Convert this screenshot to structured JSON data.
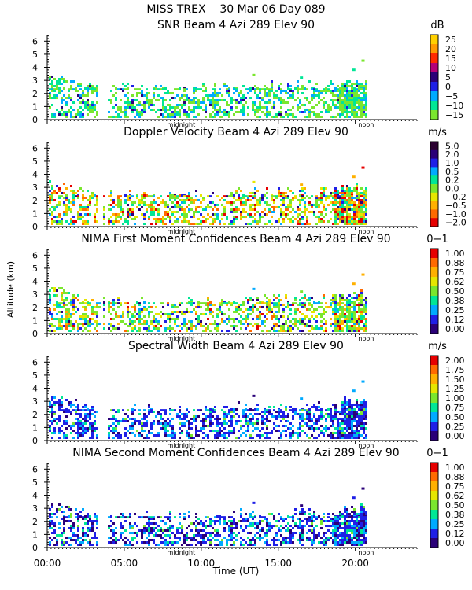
{
  "header": {
    "title": "MISS TREX    30 Mar 06 Day 089"
  },
  "y_axis_label": "Altitude (km)",
  "x_axis": {
    "label": "Time (UT)",
    "ticks": [
      "00:00",
      "05:00",
      "10:00",
      "15:00",
      "20:00"
    ],
    "tick_hours": [
      0,
      5,
      10,
      15,
      20
    ],
    "range_hours": [
      0,
      24
    ],
    "markers": [
      {
        "label": "midnight",
        "hour": 8.7
      },
      {
        "label": "noon",
        "hour": 20.7
      }
    ]
  },
  "chart_data": [
    {
      "type": "heatmap",
      "title": "SNR Beam 4 Azi 289 Elev 90",
      "unit": "dB",
      "yticks": [
        "0",
        "1",
        "2",
        "3",
        "4",
        "5",
        "6"
      ],
      "ylim": [
        0,
        6.5
      ],
      "xlim_hours": [
        0,
        24
      ],
      "colorbar": {
        "labels": [
          "25",
          "20",
          "15",
          "10",
          "5",
          "0",
          "−5",
          "−10",
          "−15"
        ],
        "colors": [
          "#ffd000",
          "#ff9a00",
          "#ff2a00",
          "#b40078",
          "#2a0078",
          "#1f1fe6",
          "#00aaff",
          "#00e696",
          "#7ae62e"
        ]
      },
      "palette_weights": [
        0,
        0,
        0,
        0,
        1,
        2,
        6,
        10,
        14
      ],
      "top_km": 3.4,
      "gap_hours": [
        [
          3.2,
          3.9
        ]
      ]
    },
    {
      "type": "heatmap",
      "title": "Doppler Velocity Beam 4 Azi 289 Elev 90",
      "unit": "m/s",
      "yticks": [
        "0",
        "1",
        "2",
        "3",
        "4",
        "5",
        "6"
      ],
      "ylim": [
        0,
        6.5
      ],
      "xlim_hours": [
        0,
        24
      ],
      "colorbar": {
        "labels": [
          "5.0",
          "2.0",
          "1.0",
          "0.5",
          "0.2",
          "0.0",
          "−0.2",
          "−0.5",
          "−1.0",
          "−2.0"
        ],
        "colors": [
          "#2a0030",
          "#2a0078",
          "#1f1fe6",
          "#00aaff",
          "#00e696",
          "#7ae62e",
          "#e6e600",
          "#ffb000",
          "#ff6a00",
          "#e60000"
        ]
      },
      "palette_weights": [
        0,
        1,
        2,
        2,
        4,
        8,
        6,
        4,
        3,
        2
      ],
      "top_km": 3.4,
      "gap_hours": [
        [
          3.2,
          3.9
        ]
      ]
    },
    {
      "type": "heatmap",
      "title": "NIMA First Moment Confidences Beam 4 Azi 289 Elev 90",
      "unit": "0−1",
      "yticks": [
        "0",
        "1",
        "2",
        "3",
        "4",
        "5",
        "6"
      ],
      "ylim": [
        0,
        6.5
      ],
      "xlim_hours": [
        0,
        24
      ],
      "colorbar": {
        "labels": [
          "1.00",
          "0.88",
          "0.75",
          "0.62",
          "0.50",
          "0.38",
          "0.25",
          "0.12",
          "0.00"
        ],
        "colors": [
          "#e60000",
          "#ff6a00",
          "#ffb000",
          "#e6e600",
          "#7ae62e",
          "#00e696",
          "#00aaff",
          "#1f1fe6",
          "#2a0078"
        ]
      },
      "palette_weights": [
        1,
        2,
        3,
        4,
        12,
        6,
        3,
        3,
        2
      ],
      "top_km": 3.4,
      "gap_hours": [
        [
          3.2,
          3.9
        ]
      ]
    },
    {
      "type": "heatmap",
      "title": "Spectral Width Beam 4 Azi 289 Elev 90",
      "unit": "m/s",
      "yticks": [
        "0",
        "1",
        "2",
        "3",
        "4",
        "5",
        "6"
      ],
      "ylim": [
        0,
        6.5
      ],
      "xlim_hours": [
        0,
        24
      ],
      "colorbar": {
        "labels": [
          "2.00",
          "1.75",
          "1.50",
          "1.25",
          "1.00",
          "0.75",
          "0.50",
          "0.25",
          "0.00"
        ],
        "colors": [
          "#e60000",
          "#ff6a00",
          "#ffb000",
          "#e6e600",
          "#7ae62e",
          "#00e696",
          "#00aaff",
          "#1f1fe6",
          "#2a0078"
        ]
      },
      "palette_weights": [
        0,
        0,
        0,
        0,
        1,
        3,
        6,
        12,
        4
      ],
      "top_km": 3.4,
      "gap_hours": [
        [
          3.2,
          3.9
        ]
      ]
    },
    {
      "type": "heatmap",
      "title": "NIMA Second Moment Confidences Beam 4 Azi 289 Elev 90",
      "unit": "0−1",
      "yticks": [
        "0",
        "1",
        "2",
        "3",
        "4",
        "5",
        "6"
      ],
      "ylim": [
        0,
        6.5
      ],
      "xlim_hours": [
        0,
        24
      ],
      "colorbar": {
        "labels": [
          "1.00",
          "0.88",
          "0.75",
          "0.62",
          "0.50",
          "0.38",
          "0.25",
          "0.12",
          "0.00"
        ],
        "colors": [
          "#e60000",
          "#ff6a00",
          "#ffb000",
          "#e6e600",
          "#7ae62e",
          "#00e696",
          "#00aaff",
          "#1f1fe6",
          "#2a0078"
        ]
      },
      "palette_weights": [
        0,
        0,
        0,
        0,
        1,
        3,
        5,
        10,
        6
      ],
      "top_km": 3.4,
      "gap_hours": [
        [
          3.2,
          3.9
        ]
      ]
    }
  ]
}
